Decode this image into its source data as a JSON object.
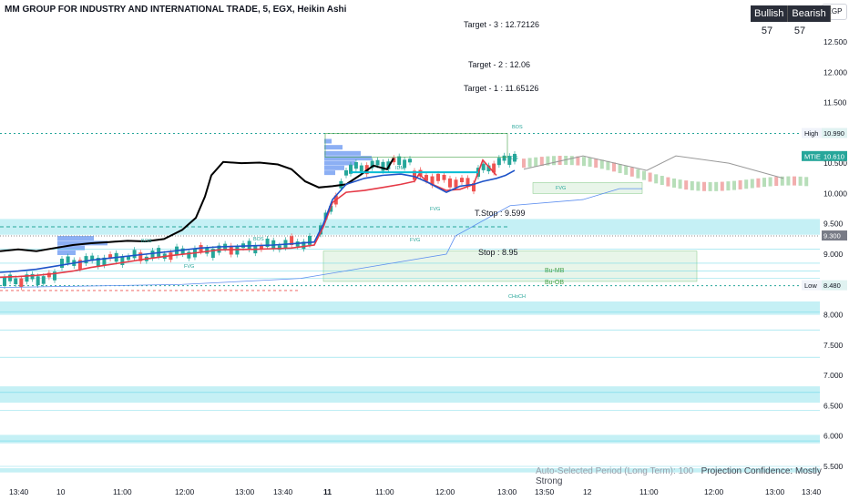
{
  "header": {
    "title": "MM GROUP FOR INDUSTRY AND INTERNATIONAL TRADE, 5, EGX, Heikin Ashi",
    "currency": "EGP"
  },
  "legend": {
    "bullish_label": "Bullish",
    "bearish_label": "Bearish",
    "bullish_value": "57",
    "bearish_value": "57"
  },
  "targets": {
    "target3": "Target - 3 : 12.72126",
    "target2": "Target - 2 : 12.06",
    "target1": "Target - 1 : 11.65126",
    "tstop": "T.Stop : 9.599",
    "stop": "Stop : 8.95"
  },
  "price_labels": {
    "high_label": "High",
    "high_value": "10.990",
    "mtie_label": "MTIE",
    "mtie_value": "10.610",
    "level_value": "9.300",
    "low_label": "Low",
    "low_value": "8.480"
  },
  "footer": {
    "period": "Auto-Selected Period (Long Term): 100",
    "confidence": "Projection Confidence: Mostly Strong"
  },
  "annotations": {
    "bos": "BOS",
    "fvg": "FVG",
    "bu_mb": "Bu-MB",
    "bu_ob": "Bu-OB",
    "idm": "IDM",
    "choch": "CHoCH"
  },
  "colors": {
    "bull": "#26a69a",
    "bear": "#ef5350",
    "cyan_zone": "#b2ebf2",
    "cyan_line": "#4dd0e1",
    "black_line": "#000000",
    "red_line": "#e53946",
    "blue_line": "#1e53c8",
    "thin_blue": "#5b8def"
  },
  "chart_data": {
    "type": "line",
    "title": "MM GROUP FOR INDUSTRY AND INTERNATIONAL TRADE, 5, EGX, Heikin Ashi",
    "y_axis": {
      "ticks": [
        12.5,
        12.0,
        11.5,
        11.0,
        10.5,
        10.0,
        9.5,
        9.0,
        8.5,
        8.0,
        7.5,
        7.0,
        6.5,
        6.0,
        5.5
      ],
      "tick_labels": [
        "12.500",
        "12.000",
        "11.500",
        "11.000",
        "10.500",
        "10.000",
        "9.500",
        "9.000",
        "8.500",
        "8.000",
        "7.500",
        "7.000",
        "6.500",
        "6.000",
        "5.500"
      ],
      "range": [
        5.25,
        13.0
      ]
    },
    "x_axis": {
      "tick_labels": [
        "13:40",
        "10",
        "11:00",
        "12:00",
        "13:00",
        "13:40",
        "11",
        "11:00",
        "12:00",
        "13:00",
        "13:50",
        "12",
        "11:00",
        "12:00",
        "13:00",
        "13:40"
      ],
      "bold_ticks": [
        "11"
      ]
    },
    "levels": {
      "target3": 12.72126,
      "target2": 12.06,
      "target1": 11.65126,
      "high": 10.99,
      "mtie": 10.61,
      "tstop": 9.599,
      "level_9_300": 9.3,
      "stop": 8.95,
      "low": 8.48
    },
    "series": [
      {
        "name": "black",
        "values": [
          9.05,
          9.08,
          9.05,
          9.1,
          9.15,
          9.18,
          9.2,
          9.22,
          9.21,
          9.25,
          9.4,
          9.6,
          9.95,
          10.3,
          10.52,
          10.5,
          10.51,
          10.48,
          10.4,
          10.2,
          10.1,
          10.12,
          10.15,
          10.3,
          10.46,
          10.4,
          10.58
        ]
      },
      {
        "name": "red",
        "values": [
          8.62,
          8.63,
          8.65,
          8.68,
          8.72,
          8.78,
          8.85,
          8.92,
          8.98,
          9.03,
          9.07,
          9.08,
          9.09,
          9.1,
          9.15,
          9.45,
          9.85,
          10.02,
          10.05,
          10.1,
          10.15,
          10.2,
          10.32,
          10.18,
          10.05,
          10.07,
          10.15,
          10.55,
          10.3
        ]
      },
      {
        "name": "blue",
        "values": [
          8.7,
          8.72,
          8.75,
          8.8,
          8.85,
          8.9,
          8.95,
          9.0,
          9.05,
          9.1,
          9.12,
          9.14,
          9.15,
          9.17,
          9.2,
          9.5,
          9.9,
          10.15,
          10.25,
          10.3,
          10.32,
          10.28,
          10.18,
          10.02,
          10.12,
          10.15,
          10.2,
          10.25,
          10.3,
          10.38
        ]
      }
    ]
  }
}
